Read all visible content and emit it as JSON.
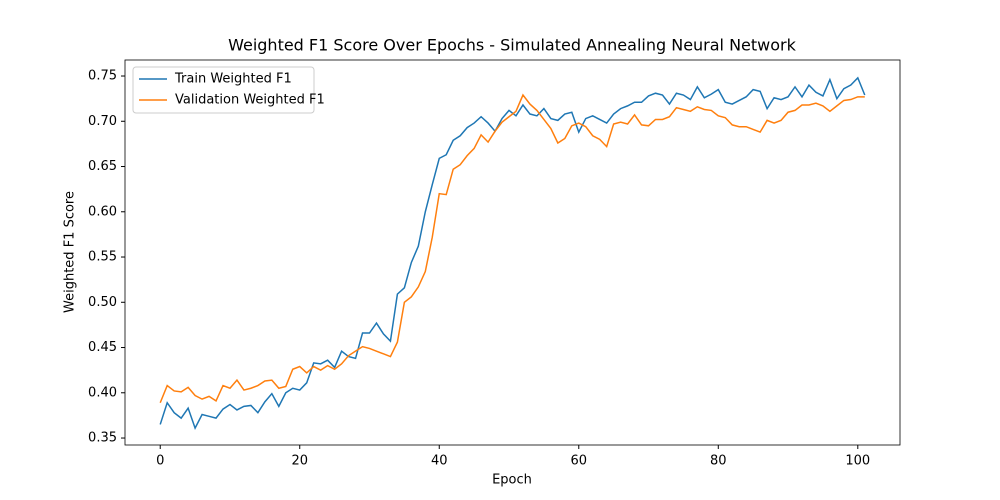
{
  "chart_data": {
    "type": "line",
    "title": "Weighted F1 Score Over Epochs - Simulated Annealing Neural Network",
    "x_label": "Epoch",
    "y_label": "Weighted F1 Score",
    "x": [
      0,
      1,
      2,
      3,
      4,
      5,
      6,
      7,
      8,
      9,
      10,
      11,
      12,
      13,
      14,
      15,
      16,
      17,
      18,
      19,
      20,
      21,
      22,
      23,
      24,
      25,
      26,
      27,
      28,
      29,
      30,
      31,
      32,
      33,
      34,
      35,
      36,
      37,
      38,
      39,
      40,
      41,
      42,
      43,
      44,
      45,
      46,
      47,
      48,
      49,
      50,
      51,
      52,
      53,
      54,
      55,
      56,
      57,
      58,
      59,
      60,
      61,
      62,
      63,
      64,
      65,
      66,
      67,
      68,
      69,
      70,
      71,
      72,
      73,
      74,
      75,
      76,
      77,
      78,
      79,
      80,
      81,
      82,
      83,
      84,
      85,
      86,
      87,
      88,
      89,
      90,
      91,
      92,
      93,
      94,
      95,
      96,
      97,
      98,
      99,
      100,
      101
    ],
    "series": [
      {
        "name": "Train Weighted F1",
        "color": "#1f77b4",
        "values": [
          0.365,
          0.389,
          0.378,
          0.372,
          0.383,
          0.361,
          0.376,
          0.374,
          0.372,
          0.382,
          0.387,
          0.381,
          0.385,
          0.386,
          0.378,
          0.39,
          0.399,
          0.385,
          0.4,
          0.405,
          0.403,
          0.411,
          0.433,
          0.432,
          0.436,
          0.428,
          0.446,
          0.44,
          0.438,
          0.466,
          0.466,
          0.477,
          0.465,
          0.457,
          0.509,
          0.516,
          0.544,
          0.562,
          0.6,
          0.63,
          0.659,
          0.663,
          0.679,
          0.684,
          0.693,
          0.698,
          0.705,
          0.698,
          0.689,
          0.703,
          0.712,
          0.706,
          0.718,
          0.708,
          0.706,
          0.714,
          0.703,
          0.701,
          0.708,
          0.71,
          0.688,
          0.703,
          0.706,
          0.702,
          0.698,
          0.708,
          0.714,
          0.717,
          0.721,
          0.721,
          0.728,
          0.731,
          0.729,
          0.719,
          0.731,
          0.729,
          0.724,
          0.738,
          0.726,
          0.73,
          0.735,
          0.721,
          0.719,
          0.723,
          0.727,
          0.735,
          0.733,
          0.714,
          0.726,
          0.724,
          0.727,
          0.738,
          0.727,
          0.74,
          0.732,
          0.728,
          0.746,
          0.725,
          0.736,
          0.74,
          0.748,
          0.729
        ]
      },
      {
        "name": "Validation Weighted F1",
        "color": "#ff7f0e",
        "values": [
          0.389,
          0.408,
          0.402,
          0.401,
          0.406,
          0.397,
          0.393,
          0.396,
          0.391,
          0.408,
          0.405,
          0.414,
          0.403,
          0.405,
          0.408,
          0.413,
          0.414,
          0.405,
          0.407,
          0.426,
          0.429,
          0.422,
          0.429,
          0.425,
          0.43,
          0.426,
          0.432,
          0.441,
          0.446,
          0.451,
          0.449,
          0.446,
          0.443,
          0.44,
          0.456,
          0.5,
          0.506,
          0.517,
          0.534,
          0.572,
          0.62,
          0.619,
          0.647,
          0.652,
          0.662,
          0.67,
          0.685,
          0.677,
          0.689,
          0.699,
          0.705,
          0.711,
          0.729,
          0.719,
          0.712,
          0.702,
          0.692,
          0.676,
          0.681,
          0.695,
          0.698,
          0.694,
          0.684,
          0.68,
          0.672,
          0.697,
          0.699,
          0.697,
          0.707,
          0.696,
          0.695,
          0.702,
          0.702,
          0.705,
          0.715,
          0.713,
          0.711,
          0.716,
          0.713,
          0.712,
          0.706,
          0.704,
          0.696,
          0.694,
          0.694,
          0.691,
          0.688,
          0.701,
          0.698,
          0.701,
          0.71,
          0.712,
          0.718,
          0.718,
          0.72,
          0.717,
          0.711,
          0.717,
          0.723,
          0.724,
          0.727,
          0.727
        ]
      }
    ],
    "xlim": [
      -5.05,
      106.05
    ],
    "ylim": [
      0.3423,
      0.7677
    ],
    "xticks": [
      0,
      20,
      40,
      60,
      80,
      100
    ],
    "yticks": [
      0.35,
      {
        "value": 0.4,
        "label": "0.40"
      },
      0.45,
      {
        "value": 0.5,
        "label": "0.50"
      },
      0.55,
      {
        "value": 0.6,
        "label": "0.60"
      },
      0.65,
      {
        "value": 0.7,
        "label": "0.70"
      },
      0.75
    ],
    "legend": "upper left"
  }
}
